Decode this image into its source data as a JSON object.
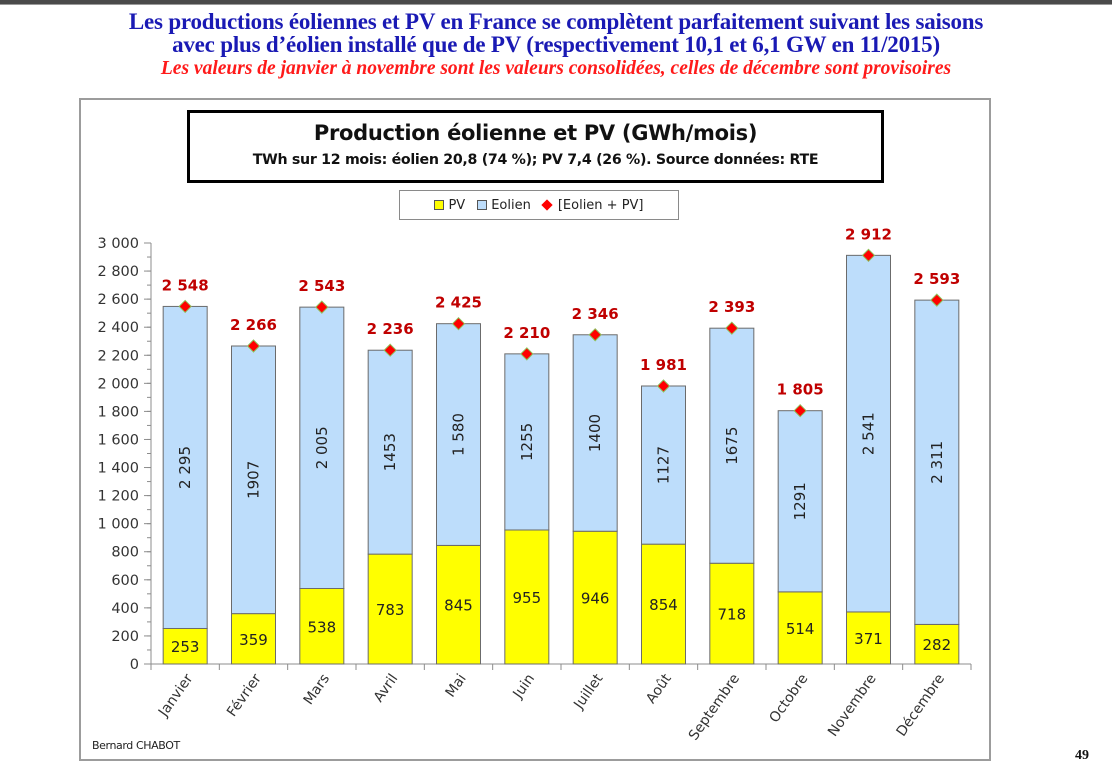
{
  "slide": {
    "headline_line1": "Les productions éoliennes et PV en France se complètent parfaitement suivant les saisons",
    "headline_line2": "avec plus d’éolien installé que de PV (respectivement 10,1 et 6,1 GW en 11/2015)",
    "subheadline": "Les valeurs de janvier à novembre sont les valeurs consolidées, celles de décembre sont provisoires",
    "author": "Bernard CHABOT",
    "page_number": "49"
  },
  "colors": {
    "pv": "#ffff00",
    "eolien": "#bdddfb",
    "total_marker": "#ff0000",
    "total_label": "#c00000",
    "headline": "#1a1ab4",
    "subheadline": "#ff1a1a"
  },
  "chart_data": {
    "type": "bar",
    "stacked": true,
    "title": "Production éolienne et PV (GWh/mois)",
    "subtitle": "TWh sur 12 mois: éolien 20,8 (74 %); PV 7,4 (26 %).  Source données: RTE",
    "xlabel": "",
    "ylabel": "",
    "ylim": [
      0,
      3000
    ],
    "y_major_step": 200,
    "y_minor_step": 100,
    "y_ticks": [
      "0",
      "200",
      "400",
      "600",
      "800",
      "1 000",
      "1 200",
      "1 400",
      "1 600",
      "1 800",
      "2 000",
      "2 200",
      "2 400",
      "2 600",
      "2 800",
      "3 000"
    ],
    "grid": false,
    "legend_position": "top-center",
    "legend": [
      "PV",
      "Eolien",
      "[Eolien + PV]"
    ],
    "categories": [
      "Janvier",
      "Février",
      "Mars",
      "Avril",
      "Mai",
      "Juin",
      "Juillet",
      "Août",
      "Septembre",
      "Octobre",
      "Novembre",
      "Décembre"
    ],
    "series": [
      {
        "name": "PV",
        "values": [
          253,
          359,
          538,
          783,
          845,
          955,
          946,
          854,
          718,
          514,
          371,
          282
        ],
        "labels": [
          "253",
          "359",
          "538",
          "783",
          "845",
          "955",
          "946",
          "854",
          "718",
          "514",
          "371",
          "282"
        ]
      },
      {
        "name": "Eolien",
        "values": [
          2295,
          1907,
          2005,
          1453,
          1580,
          1255,
          1400,
          1127,
          1675,
          1291,
          2541,
          2311
        ],
        "labels": [
          "2 295",
          "1907",
          "2 005",
          "1453",
          "1 580",
          "1255",
          "1400",
          "1127",
          "1675",
          "1291",
          "2 541",
          "2 311"
        ]
      },
      {
        "name": "[Eolien + PV]",
        "values": [
          2548,
          2266,
          2543,
          2236,
          2425,
          2210,
          2346,
          1981,
          2393,
          1805,
          2912,
          2593
        ],
        "labels": [
          "2 548",
          "2 266",
          "2 543",
          "2 236",
          "2 425",
          "2 210",
          "2 346",
          "1 981",
          "2 393",
          "1 805",
          "2 912",
          "2 593"
        ]
      }
    ]
  }
}
